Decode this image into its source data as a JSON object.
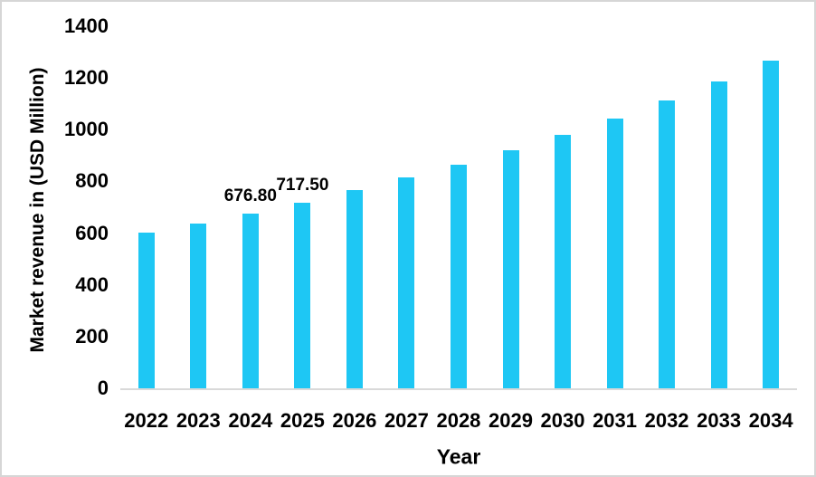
{
  "chart_data": {
    "type": "bar",
    "categories": [
      "2022",
      "2023",
      "2024",
      "2025",
      "2026",
      "2027",
      "2028",
      "2029",
      "2030",
      "2031",
      "2032",
      "2033",
      "2034"
    ],
    "values": [
      601,
      638,
      676.8,
      717.5,
      765,
      816,
      865,
      922,
      981,
      1044,
      1114,
      1186,
      1266
    ],
    "bar_labels": [
      "",
      "",
      "676.80",
      "717.50",
      "",
      "",
      "",
      "",
      "",
      "",
      "",
      "",
      ""
    ],
    "title": "",
    "xlabel": "Year",
    "ylabel": "Market revenue in (USD Million)",
    "ylim": [
      0,
      1400
    ],
    "yticks": [
      0,
      200,
      400,
      600,
      800,
      1000,
      1200,
      1400
    ],
    "grid": false,
    "legend_position": "none",
    "colors": {
      "bar": "#1ec7f4",
      "axis_line": "#d9d9d9",
      "text": "#000000",
      "background": "#ffffff",
      "frame_border": "#d6d6d6"
    }
  }
}
